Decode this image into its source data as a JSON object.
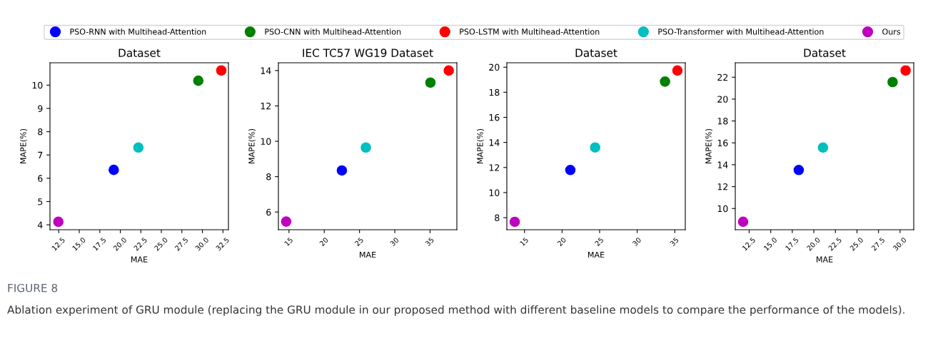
{
  "chart_data": [
    {
      "type": "scatter",
      "title": "Dataset",
      "xlabel": "MAE",
      "ylabel": "MAPE(%)",
      "legend": "top",
      "marker": "circle",
      "grid": false,
      "xlim": [
        11.43,
        33.17
      ],
      "ylim": [
        3.79,
        10.96
      ],
      "xticks": [
        {
          "value": 12.5,
          "label": "12.5"
        },
        {
          "value": 15,
          "label": "15.0"
        },
        {
          "value": 17.5,
          "label": "17.5"
        },
        {
          "value": 20,
          "label": "20.0"
        },
        {
          "value": 22.5,
          "label": "22.5"
        },
        {
          "value": 25,
          "label": "25.0"
        },
        {
          "value": 27.5,
          "label": "27.5"
        },
        {
          "value": 30,
          "label": "30.0"
        },
        {
          "value": 32.5,
          "label": "32.5"
        }
      ],
      "yticks": [
        4,
        5,
        6,
        7,
        8,
        9,
        10
      ],
      "annotations": [
        "FIGURE 8",
        "Ablation experiment of GRU module (replacing the GRU module in our proposed method with different baseline models to compare the performance of the models)."
      ],
      "series": [
        {
          "name": "PSO-RNN with Multihead-Attention",
          "color": "#0000ff",
          "x": [
            19.2
          ],
          "values": [
            6.36
          ]
        },
        {
          "name": "PSO-CNN with Multihead-Attention",
          "color": "#008000",
          "x": [
            29.5
          ],
          "values": [
            10.19
          ]
        },
        {
          "name": "PSO-LSTM with Multihead-Attention",
          "color": "#ff0000",
          "x": [
            32.3
          ],
          "values": [
            10.63
          ]
        },
        {
          "name": "PSO-Transformer with Multihead-Attention",
          "color": "#00bfbf",
          "x": [
            22.2
          ],
          "values": [
            7.32
          ]
        },
        {
          "name": "Ours",
          "color": "#bf00bf",
          "x": [
            12.45
          ],
          "values": [
            4.13
          ]
        }
      ]
    },
    {
      "type": "scatter",
      "title": "IEC TC57 WG19 Dataset",
      "xlabel": "MAE",
      "ylabel": "MAPE(%)",
      "marker": "circle",
      "grid": false,
      "xlim": [
        13.5,
        38.8
      ],
      "ylim": [
        5.0,
        14.44
      ],
      "xticks": [
        15,
        20,
        25,
        30,
        35
      ],
      "yticks": [
        6,
        8,
        10,
        12,
        14
      ],
      "series": [
        {
          "color": "#0000ff",
          "x": [
            22.5
          ],
          "values": [
            8.35
          ]
        },
        {
          "color": "#008000",
          "x": [
            35.05
          ],
          "values": [
            13.32
          ]
        },
        {
          "color": "#ff0000",
          "x": [
            37.65
          ],
          "values": [
            14.0
          ]
        },
        {
          "color": "#00bfbf",
          "x": [
            25.9
          ],
          "values": [
            9.65
          ]
        },
        {
          "color": "#bf00bf",
          "x": [
            14.6
          ],
          "values": [
            5.46
          ]
        }
      ]
    },
    {
      "type": "scatter",
      "title": "Dataset",
      "xlabel": "MAE",
      "ylabel": "MAPE(%)",
      "marker": "circle",
      "grid": false,
      "xlim": [
        12.65,
        36.4
      ],
      "ylim": [
        7.04,
        20.35
      ],
      "xticks": [
        15,
        20,
        25,
        30,
        35
      ],
      "yticks": [
        8,
        10,
        12,
        14,
        16,
        18,
        20
      ],
      "series": [
        {
          "color": "#0000ff",
          "x": [
            21.1
          ],
          "values": [
            11.8
          ]
        },
        {
          "color": "#008000",
          "x": [
            33.7
          ],
          "values": [
            18.85
          ]
        },
        {
          "color": "#ff0000",
          "x": [
            35.35
          ],
          "values": [
            19.73
          ]
        },
        {
          "color": "#00bfbf",
          "x": [
            24.4
          ],
          "values": [
            13.6
          ]
        },
        {
          "color": "#bf00bf",
          "x": [
            13.7
          ],
          "values": [
            7.67
          ]
        }
      ]
    },
    {
      "type": "scatter",
      "title": "Dataset",
      "xlabel": "MAE",
      "ylabel": "MAPE(%)",
      "marker": "circle",
      "grid": false,
      "xlim": [
        10.89,
        31.58
      ],
      "ylim": [
        8.06,
        23.32
      ],
      "xticks": [
        {
          "value": 12.5,
          "label": "12.5"
        },
        {
          "value": 15,
          "label": "15.0"
        },
        {
          "value": 17.5,
          "label": "17.5"
        },
        {
          "value": 20,
          "label": "20.0"
        },
        {
          "value": 22.5,
          "label": "22.5"
        },
        {
          "value": 25,
          "label": "25.0"
        },
        {
          "value": 27.5,
          "label": "27.5"
        },
        {
          "value": 30,
          "label": "30.0"
        }
      ],
      "yticks": [
        10,
        12,
        14,
        16,
        18,
        20,
        22
      ],
      "series": [
        {
          "color": "#0000ff",
          "x": [
            18.25
          ],
          "values": [
            13.52
          ]
        },
        {
          "color": "#008000",
          "x": [
            29.13
          ],
          "values": [
            21.56
          ]
        },
        {
          "color": "#ff0000",
          "x": [
            30.64
          ],
          "values": [
            22.62
          ]
        },
        {
          "color": "#00bfbf",
          "x": [
            21.06
          ],
          "values": [
            15.57
          ]
        },
        {
          "color": "#bf00bf",
          "x": [
            11.8
          ],
          "values": [
            8.79
          ]
        }
      ]
    }
  ]
}
